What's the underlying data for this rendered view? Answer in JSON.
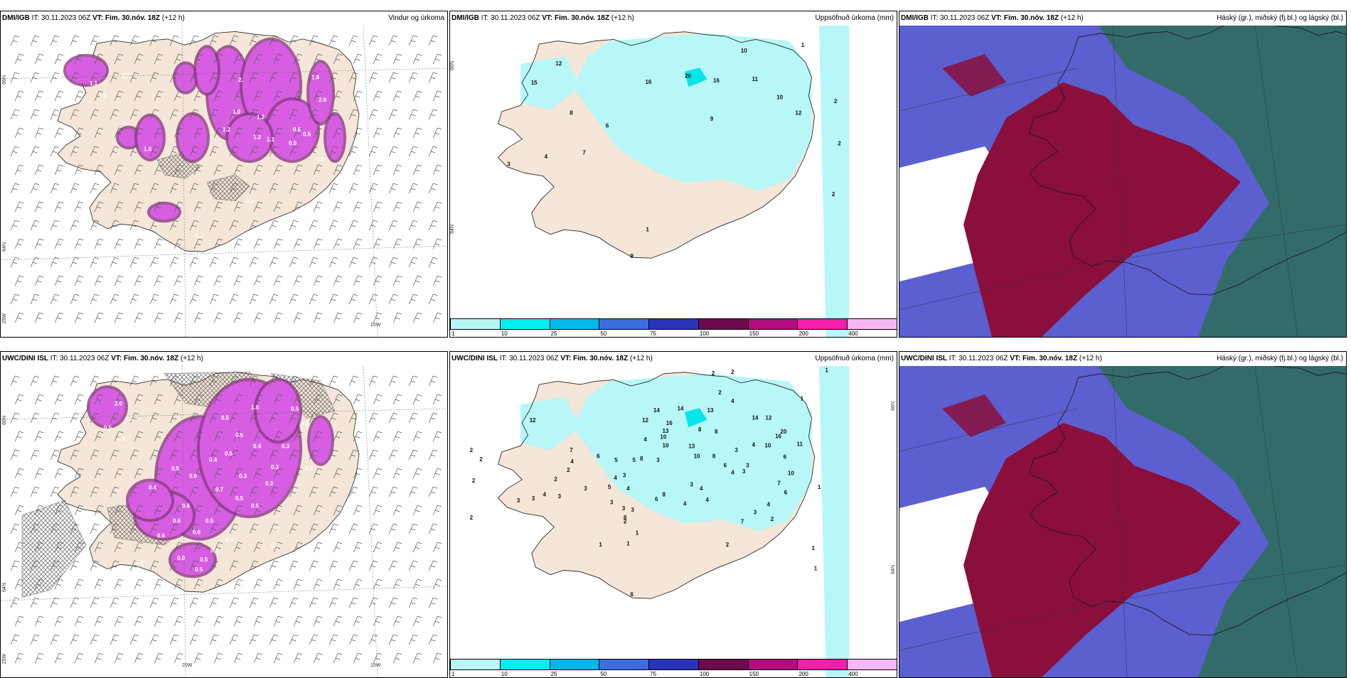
{
  "rows": [
    {
      "panels": [
        {
          "model": "DMI/IGB",
          "it_label": "IT:",
          "it": "30.11.2023 06Z",
          "vt_label": "VT:",
          "vt": "Fim. 30.nóv. 18Z",
          "lead": "(+12 h)",
          "product": "Vindur og úrkoma",
          "type": "wind",
          "labels": [
            {
              "t": "2.7",
              "x": 140,
              "y": 70
            },
            {
              "t": "1.1",
              "x": 95,
              "y": 80
            },
            {
              "t": "1.3",
              "x": 108,
              "y": 97
            },
            {
              "t": "2.",
              "x": 304,
              "y": 75
            },
            {
              "t": "1.8",
              "x": 407,
              "y": 72
            },
            {
              "t": "2.0",
              "x": 417,
              "y": 102
            },
            {
              "t": "1.0",
              "x": 296,
              "y": 118
            },
            {
              "t": "1.2",
              "x": 330,
              "y": 125
            },
            {
              "t": "1.2",
              "x": 282,
              "y": 142
            },
            {
              "t": "0.6",
              "x": 381,
              "y": 142
            },
            {
              "t": "0.5",
              "x": 395,
              "y": 148
            },
            {
              "t": "1.2",
              "x": 325,
              "y": 152
            },
            {
              "t": "1.1",
              "x": 344,
              "y": 155
            },
            {
              "t": "0.5",
              "x": 375,
              "y": 160
            },
            {
              "t": "1.0",
              "x": 171,
              "y": 168
            },
            {
              "t": "0.6",
              "x": 414,
              "y": 182
            },
            {
              "t": "0.6",
              "x": 315,
              "y": 238
            },
            {
              "t": "1.1",
              "x": 244,
              "y": 284
            },
            {
              "t": "0",
              "x": 494,
              "y": 303
            }
          ]
        },
        {
          "model": "DMI/IGB",
          "it_label": "IT:",
          "it": "30.11.2023 06Z",
          "vt_label": "VT:",
          "vt": "Fim. 30.nóv. 18Z",
          "lead": "(+12 h)",
          "product": "Uppsöfnuð úrkoma (mm)",
          "type": "precip",
          "labels": [
            {
              "t": "10",
              "x": 375,
              "y": 35
            },
            {
              "t": "1",
              "x": 456,
              "y": 28
            },
            {
              "t": "12",
              "x": 127,
              "y": 52
            },
            {
              "t": "16",
              "x": 247,
              "y": 76
            },
            {
              "t": "20",
              "x": 300,
              "y": 68
            },
            {
              "t": "16",
              "x": 338,
              "y": 74
            },
            {
              "t": "11",
              "x": 390,
              "y": 72
            },
            {
              "t": "15",
              "x": 94,
              "y": 77
            },
            {
              "t": "10",
              "x": 423,
              "y": 96
            },
            {
              "t": "2",
              "x": 500,
              "y": 101
            },
            {
              "t": "12",
              "x": 448,
              "y": 116
            },
            {
              "t": "8",
              "x": 146,
              "y": 116
            },
            {
              "t": "9",
              "x": 334,
              "y": 124
            },
            {
              "t": "6",
              "x": 194,
              "y": 133
            },
            {
              "t": "2",
              "x": 505,
              "y": 156
            },
            {
              "t": "7",
              "x": 163,
              "y": 168
            },
            {
              "t": "4",
              "x": 112,
              "y": 173
            },
            {
              "t": "3",
              "x": 62,
              "y": 183
            },
            {
              "t": "2",
              "x": 497,
              "y": 222
            },
            {
              "t": "1",
              "x": 248,
              "y": 268
            },
            {
              "t": "9",
              "x": 227,
              "y": 303
            }
          ]
        },
        {
          "model": "DMI/IGB",
          "it_label": "IT:",
          "it": "30.11.2023 06Z",
          "vt_label": "VT:",
          "vt": "Fim. 30.nóv. 18Z",
          "lead": "(+12 h)",
          "product": "Háský (gr.), miðský (fj.bl.) og lágský (bl.)",
          "type": "cloud",
          "labels": []
        }
      ]
    },
    {
      "panels": [
        {
          "model": "UWC/DINI ISL",
          "it_label": "IT:",
          "it": "30.11.2023 06Z",
          "vt_label": "VT:",
          "vt": "Fim. 30.nóv. 18Z",
          "lead": "(+12 h)",
          "product": "",
          "type": "wind",
          "labels": [
            {
              "t": "2.0",
              "x": 130,
              "y": 53
            },
            {
              "t": "0.7",
              "x": 145,
              "y": 73
            },
            {
              "t": "0.5",
              "x": 115,
              "y": 85
            },
            {
              "t": "0.6",
              "x": 135,
              "y": 100
            },
            {
              "t": "0.5",
              "x": 280,
              "y": 72
            },
            {
              "t": "1.0",
              "x": 322,
              "y": 58
            },
            {
              "t": "0.5",
              "x": 378,
              "y": 60
            },
            {
              "t": "0.3",
              "x": 392,
              "y": 80
            },
            {
              "t": "0.5",
              "x": 300,
              "y": 95
            },
            {
              "t": "0.4",
              "x": 325,
              "y": 110
            },
            {
              "t": "0.3",
              "x": 365,
              "y": 110
            },
            {
              "t": "0.4",
              "x": 263,
              "y": 128
            },
            {
              "t": "0.5",
              "x": 285,
              "y": 120
            },
            {
              "t": "0.3",
              "x": 350,
              "y": 138
            },
            {
              "t": "0.3",
              "x": 398,
              "y": 140
            },
            {
              "t": "0.5",
              "x": 210,
              "y": 140
            },
            {
              "t": "0.6",
              "x": 235,
              "y": 150
            },
            {
              "t": "0.3",
              "x": 305,
              "y": 150
            },
            {
              "t": "0.3",
              "x": 342,
              "y": 160
            },
            {
              "t": "0.4",
              "x": 178,
              "y": 165
            },
            {
              "t": "0.7",
              "x": 272,
              "y": 168
            },
            {
              "t": "0.5",
              "x": 300,
              "y": 180
            },
            {
              "t": "0.5",
              "x": 322,
              "y": 190
            },
            {
              "t": "0.6",
              "x": 225,
              "y": 190
            },
            {
              "t": "0.6",
              "x": 212,
              "y": 210
            },
            {
              "t": "0.5",
              "x": 258,
              "y": 210
            },
            {
              "t": "0.6",
              "x": 240,
              "y": 225
            },
            {
              "t": "0.6",
              "x": 190,
              "y": 230
            },
            {
              "t": "0.7",
              "x": 352,
              "y": 222
            },
            {
              "t": "0.4",
              "x": 286,
              "y": 235
            },
            {
              "t": "0.6",
              "x": 350,
              "y": 243
            },
            {
              "t": "0.4",
              "x": 265,
              "y": 250
            },
            {
              "t": "0.0",
              "x": 218,
              "y": 260
            },
            {
              "t": "0.5",
              "x": 250,
              "y": 262
            },
            {
              "t": "0.5",
              "x": 243,
              "y": 275
            },
            {
              "t": "0.4",
              "x": 160,
              "y": 266
            }
          ]
        },
        {
          "model": "UWC/DINI ISL",
          "it_label": "IT:",
          "it": "30.11.2023 06Z",
          "vt_label": "VT:",
          "vt": "Fim. 30.nóv. 18Z",
          "lead": "(+12 h)",
          "product": "Uppsöfnuð úrkoma (mm)",
          "type": "precip",
          "labels": [
            {
              "t": "2",
              "x": 336,
              "y": 12
            },
            {
              "t": "2",
              "x": 362,
              "y": 10
            },
            {
              "t": "1",
              "x": 488,
              "y": 8
            },
            {
              "t": "2",
              "x": 345,
              "y": 37
            },
            {
              "t": "4",
              "x": 362,
              "y": 48
            },
            {
              "t": "1",
              "x": 455,
              "y": 45
            },
            {
              "t": "14",
              "x": 258,
              "y": 60
            },
            {
              "t": "14",
              "x": 290,
              "y": 58
            },
            {
              "t": "13",
              "x": 330,
              "y": 60
            },
            {
              "t": "12",
              "x": 243,
              "y": 73
            },
            {
              "t": "16",
              "x": 275,
              "y": 77
            },
            {
              "t": "14",
              "x": 390,
              "y": 70
            },
            {
              "t": "12",
              "x": 408,
              "y": 70
            },
            {
              "t": "12",
              "x": 92,
              "y": 73
            },
            {
              "t": "13",
              "x": 270,
              "y": 87
            },
            {
              "t": "10",
              "x": 267,
              "y": 95
            },
            {
              "t": "4",
              "x": 245,
              "y": 98
            },
            {
              "t": "8",
              "x": 318,
              "y": 85
            },
            {
              "t": "8",
              "x": 340,
              "y": 88
            },
            {
              "t": "20",
              "x": 428,
              "y": 88
            },
            {
              "t": "16",
              "x": 421,
              "y": 94
            },
            {
              "t": "10",
              "x": 407,
              "y": 106
            },
            {
              "t": "11",
              "x": 450,
              "y": 104
            },
            {
              "t": "10",
              "x": 270,
              "y": 106
            },
            {
              "t": "13",
              "x": 305,
              "y": 107
            },
            {
              "t": "4",
              "x": 390,
              "y": 105
            },
            {
              "t": "7",
              "x": 146,
              "y": 112
            },
            {
              "t": "6",
              "x": 182,
              "y": 120
            },
            {
              "t": "8",
              "x": 240,
              "y": 123
            },
            {
              "t": "10",
              "x": 312,
              "y": 120
            },
            {
              "t": "8",
              "x": 337,
              "y": 120
            },
            {
              "t": "6",
              "x": 432,
              "y": 121
            },
            {
              "t": "3",
              "x": 367,
              "y": 112
            },
            {
              "t": "5",
              "x": 206,
              "y": 125
            },
            {
              "t": "5",
              "x": 230,
              "y": 125
            },
            {
              "t": "3",
              "x": 262,
              "y": 125
            },
            {
              "t": "2",
              "x": 12,
              "y": 112
            },
            {
              "t": "2",
              "x": 25,
              "y": 124
            },
            {
              "t": "4",
              "x": 147,
              "y": 127
            },
            {
              "t": "2",
              "x": 142,
              "y": 138
            },
            {
              "t": "6",
              "x": 352,
              "y": 132
            },
            {
              "t": "4",
              "x": 362,
              "y": 141
            },
            {
              "t": "3",
              "x": 377,
              "y": 140
            },
            {
              "t": "3",
              "x": 382,
              "y": 132
            },
            {
              "t": "10",
              "x": 438,
              "y": 142
            },
            {
              "t": "4",
              "x": 205,
              "y": 148
            },
            {
              "t": "3",
              "x": 217,
              "y": 145
            },
            {
              "t": "2",
              "x": 125,
              "y": 150
            },
            {
              "t": "2",
              "x": 15,
              "y": 152
            },
            {
              "t": "3",
              "x": 165,
              "y": 162
            },
            {
              "t": "5",
              "x": 197,
              "y": 160
            },
            {
              "t": "4",
              "x": 222,
              "y": 162
            },
            {
              "t": "3",
              "x": 307,
              "y": 157
            },
            {
              "t": "4",
              "x": 320,
              "y": 162
            },
            {
              "t": "7",
              "x": 424,
              "y": 155
            },
            {
              "t": "6",
              "x": 433,
              "y": 167
            },
            {
              "t": "4",
              "x": 110,
              "y": 170
            },
            {
              "t": "3",
              "x": 130,
              "y": 172
            },
            {
              "t": "1",
              "x": 478,
              "y": 160
            },
            {
              "t": "4",
              "x": 298,
              "y": 182
            },
            {
              "t": "4",
              "x": 328,
              "y": 177
            },
            {
              "t": "3",
              "x": 200,
              "y": 180
            },
            {
              "t": "8",
              "x": 270,
              "y": 170
            },
            {
              "t": "3",
              "x": 228,
              "y": 190
            },
            {
              "t": "3",
              "x": 216,
              "y": 188
            },
            {
              "t": "8",
              "x": 218,
              "y": 200
            },
            {
              "t": "3",
              "x": 392,
              "y": 193
            },
            {
              "t": "3",
              "x": 75,
              "y": 178
            },
            {
              "t": "3",
              "x": 95,
              "y": 175
            },
            {
              "t": "4",
              "x": 410,
              "y": 183
            },
            {
              "t": "7",
              "x": 375,
              "y": 205
            },
            {
              "t": "6",
              "x": 260,
              "y": 176
            },
            {
              "t": "2",
              "x": 12,
              "y": 200
            },
            {
              "t": "2",
              "x": 218,
              "y": 205
            },
            {
              "t": "1",
              "x": 234,
              "y": 220
            },
            {
              "t": "1",
              "x": 222,
              "y": 234
            },
            {
              "t": "2",
              "x": 415,
              "y": 202
            },
            {
              "t": "1",
              "x": 185,
              "y": 235
            },
            {
              "t": "2",
              "x": 355,
              "y": 235
            },
            {
              "t": "1",
              "x": 470,
              "y": 240
            },
            {
              "t": "1",
              "x": 473,
              "y": 266
            },
            {
              "t": "6",
              "x": 227,
              "y": 300
            }
          ]
        },
        {
          "model": "UWC/DINI ISL",
          "it_label": "IT:",
          "it": "30.11.2023 06Z",
          "vt_label": "VT:",
          "vt": "Fim. 30.nóv. 18Z",
          "lead": "(+12 h)",
          "product": "Háský (gr.), miðský (fj.bl.) og lágský (bl.)",
          "type": "cloud",
          "labels": []
        }
      ]
    }
  ],
  "grid_labels": {
    "lat66": "66N",
    "lat64": "64N",
    "lon25": "25W",
    "lon20": "20W",
    "lon15": "15W"
  },
  "colorbar": {
    "ticks": [
      "1",
      "10",
      "25",
      "50",
      "75",
      "100",
      "150",
      "200",
      "400"
    ],
    "colors": [
      "#b9f7f7",
      "#00f0f0",
      "#00b8ea",
      "#3c6de0",
      "#2a34b8",
      "#6e0a4e",
      "#b00e80",
      "#f51ea8",
      "#f6b8f2"
    ]
  },
  "colors": {
    "land": "#f4e6d8",
    "precip": "#b7f7f7",
    "wind_precip": "#d75ee2",
    "wind_precip_dark": "#8c3a86",
    "cloud_high": "#2f6d5e",
    "cloud_mid": "#5b5fd0",
    "cloud_low": "#8a0f3c"
  }
}
